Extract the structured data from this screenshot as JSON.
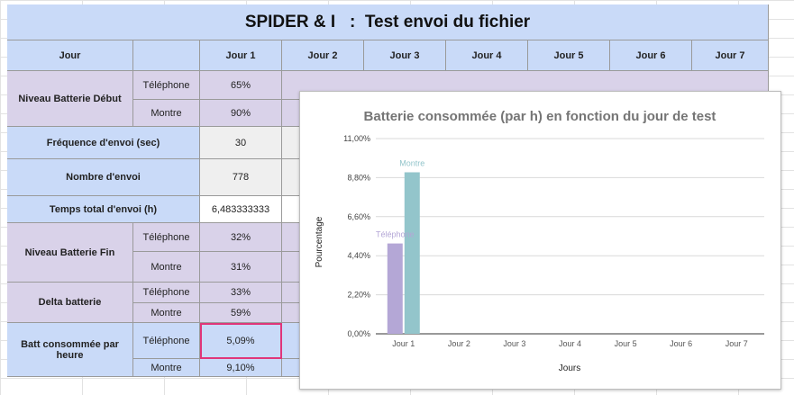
{
  "sheet": {
    "title": "SPIDER & I   :  Test envoi du fichier",
    "header_day_label": "Jour",
    "days": [
      "Jour 1",
      "Jour 2",
      "Jour 3",
      "Jour 4",
      "Jour 5",
      "Jour 6",
      "Jour 7"
    ],
    "rows": {
      "batt_debut": {
        "label": "Niveau Batterie Début",
        "sub1": "Téléphone",
        "v1": "65%",
        "sub2": "Montre",
        "v2": "90%"
      },
      "frequence": {
        "label": "Fréquence d'envoi (sec)",
        "value": "30"
      },
      "nombre": {
        "label": "Nombre d'envoi",
        "value": "778"
      },
      "temps": {
        "label": "Temps total d'envoi (h)",
        "value": "6,483333333"
      },
      "batt_fin": {
        "label": "Niveau Batterie Fin",
        "sub1": "Téléphone",
        "v1": "32%",
        "sub2": "Montre",
        "v2": "31%"
      },
      "delta": {
        "label": "Delta batterie",
        "sub1": "Téléphone",
        "v1": "33%",
        "sub2": "Montre",
        "v2": "59%"
      },
      "conso": {
        "label": "Batt consommée par heure",
        "sub1": "Téléphone",
        "v1": "5,09%",
        "sub2": "Montre",
        "v2": "9,10%"
      }
    }
  },
  "chart_data": {
    "type": "bar",
    "title": "Batterie consommée (par h) en fonction du jour de test",
    "xlabel": "Jours",
    "ylabel": "Pourcentage",
    "categories": [
      "Jour 1",
      "Jour 2",
      "Jour 3",
      "Jour 4",
      "Jour 5",
      "Jour 6",
      "Jour 7"
    ],
    "ylim": [
      0,
      11
    ],
    "yticks": [
      "0,00%",
      "2,20%",
      "4,40%",
      "6,60%",
      "8,80%",
      "11,00%"
    ],
    "grid": true,
    "series": [
      {
        "name": "Téléphone",
        "color": "#b4a7d6",
        "values": [
          5.09,
          null,
          null,
          null,
          null,
          null,
          null
        ]
      },
      {
        "name": "Montre",
        "color": "#93c5cb",
        "values": [
          9.1,
          null,
          null,
          null,
          null,
          null,
          null
        ]
      }
    ],
    "data_labels": [
      "Téléphone",
      "Montre"
    ]
  }
}
